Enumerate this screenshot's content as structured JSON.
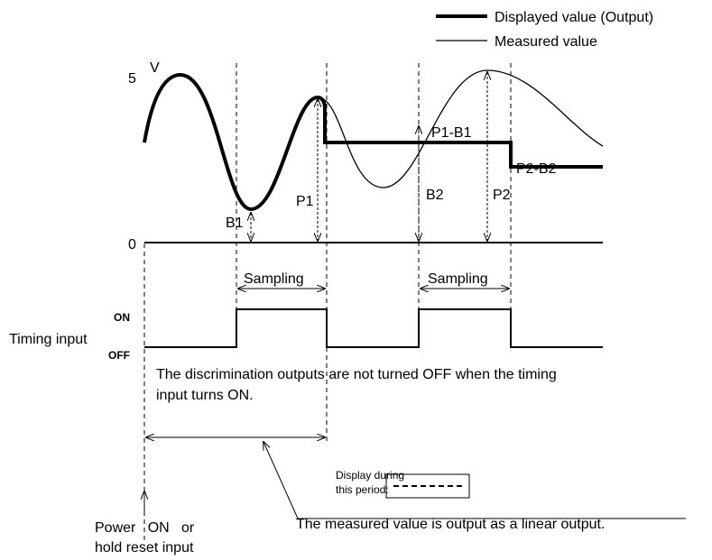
{
  "legend": {
    "items": [
      {
        "label": "Displayed value (Output)"
      },
      {
        "label": "Measured value"
      }
    ]
  },
  "axis": {
    "unit": "V",
    "top": "5",
    "bottom": "0"
  },
  "labels": {
    "b1": "B1",
    "p1": "P1",
    "b2": "B2",
    "p2": "P2",
    "p1b1": "P1-B1",
    "p2b2": "P2-B2"
  },
  "sampling": [
    "Sampling",
    "Sampling"
  ],
  "timing": {
    "title": "Timing input",
    "on": "ON",
    "off": "OFF"
  },
  "note": [
    "The discrimination outputs are not turned OFF when the timing",
    "input turns ON."
  ],
  "display": {
    "caption": [
      "Display during",
      "this period:"
    ],
    "description": "The measured value is output as a linear output."
  },
  "power": [
    "Power   ON   or",
    "hold reset input"
  ]
}
